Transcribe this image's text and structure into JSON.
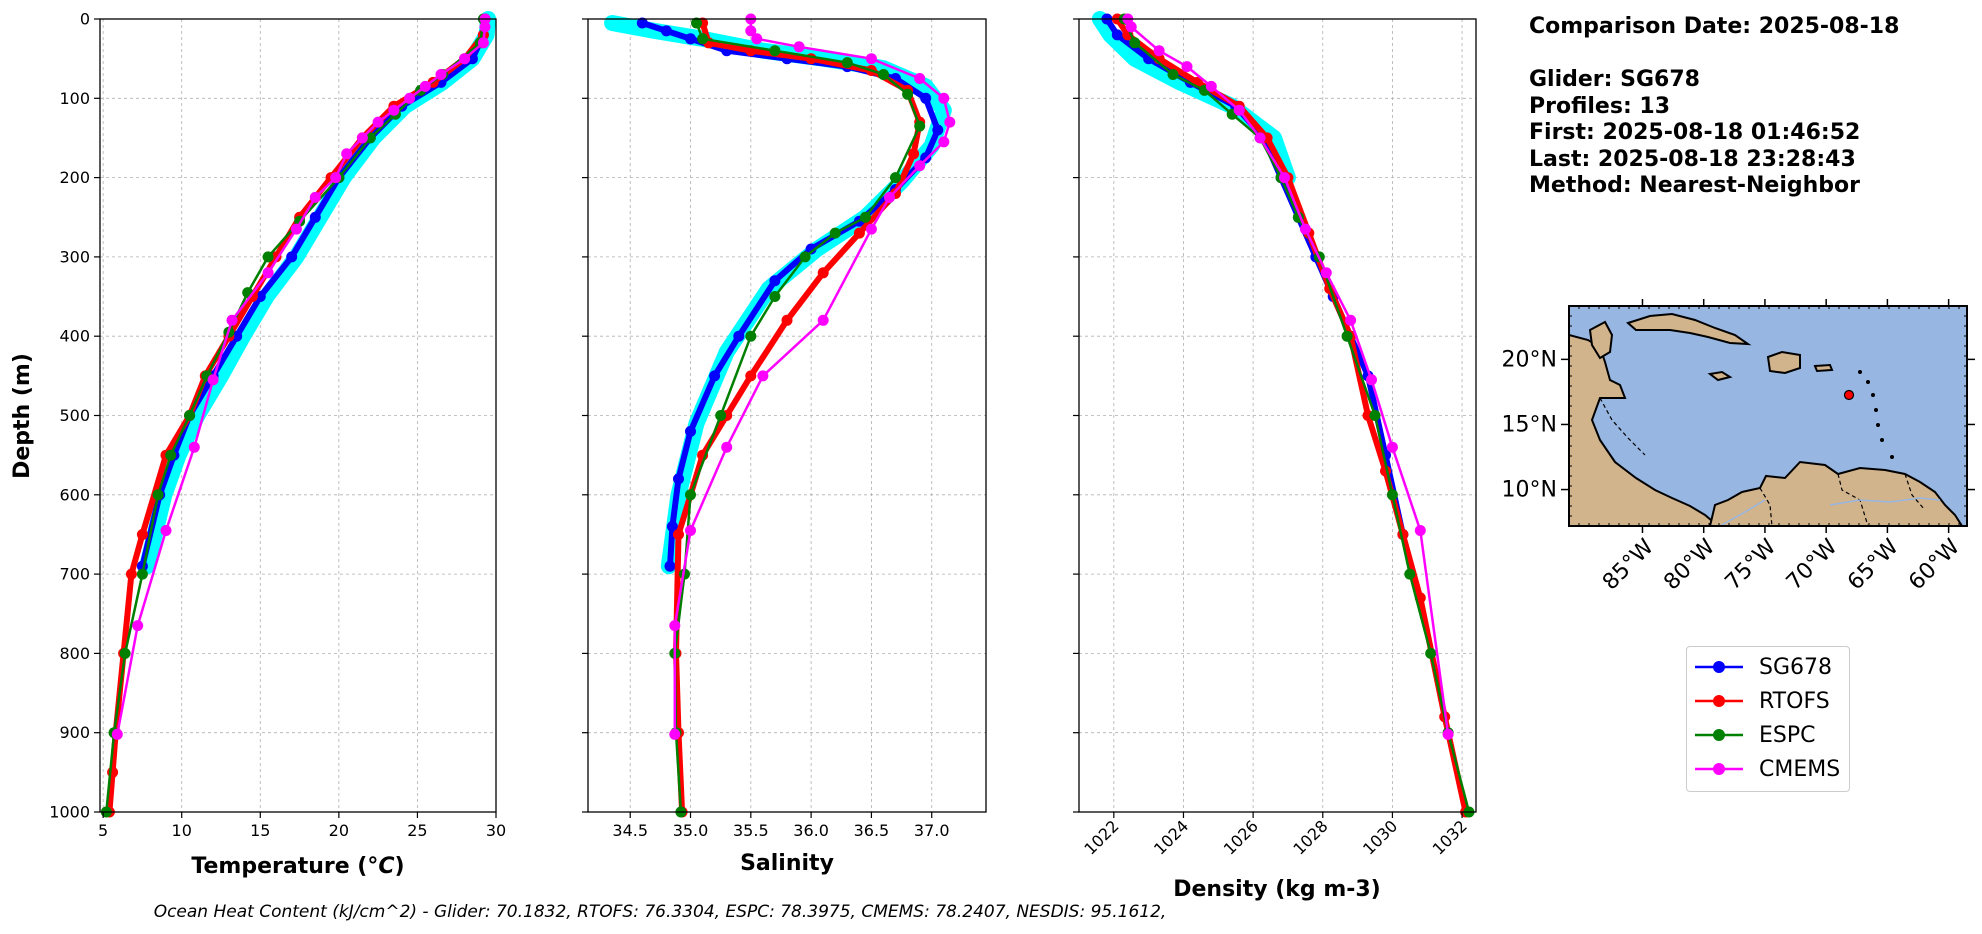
{
  "info": {
    "comparison_date": "Comparison Date: 2025-08-18",
    "glider": "Glider: SG678",
    "profiles": "Profiles: 13",
    "first": "First: 2025-08-18 01:46:52",
    "last": "Last: 2025-08-18 23:28:43",
    "method": "Method: Nearest-Neighbor"
  },
  "footer": "Ocean Heat Content (kJ/cm^2) - Glider: 70.1832,  RTOFS: 76.3304,  ESPC: 78.3975,  CMEMS: 78.2407,  NESDIS: 95.1612,",
  "legend": [
    {
      "name": "SG678",
      "color": "#0000ff"
    },
    {
      "name": "RTOFS",
      "color": "#ff0000"
    },
    {
      "name": "ESPC",
      "color": "#008000"
    },
    {
      "name": "CMEMS",
      "color": "#ff00ff"
    }
  ],
  "colors": {
    "glider_profiles": "#00ffff",
    "ocean": "#97b6e1",
    "land": "#d2b48c",
    "grid": "#b0b0b0"
  },
  "map": {
    "lat_ticks": [
      "20°N",
      "15°N",
      "10°N"
    ],
    "lon_ticks": [
      "85°W",
      "80°W",
      "75°W",
      "70°W",
      "65°W",
      "60°W"
    ],
    "glider_marker": {
      "lon": -62.7,
      "lat": 17.2
    }
  },
  "chart_data": [
    {
      "type": "line",
      "xlabel": "Temperature (°C)",
      "ylabel": "Depth (m)",
      "xlim": [
        4.8,
        30
      ],
      "ylim": [
        1000,
        0
      ],
      "xticks": [
        5,
        10,
        15,
        20,
        25,
        30
      ],
      "yticks": [
        0,
        100,
        200,
        300,
        400,
        500,
        600,
        700,
        800,
        900,
        1000
      ],
      "grid": true,
      "series": [
        {
          "name": "SG678",
          "x": [
            29.3,
            29.2,
            28.5,
            26.5,
            24.0,
            22.0,
            20.0,
            18.5,
            17.0,
            15.0,
            13.5,
            12.0,
            10.5,
            9.5,
            8.6,
            7.5
          ],
          "y": [
            0,
            20,
            50,
            80,
            110,
            150,
            200,
            250,
            300,
            350,
            400,
            450,
            500,
            550,
            600,
            690
          ]
        },
        {
          "name": "RTOFS",
          "x": [
            29.3,
            29.2,
            28.0,
            26.0,
            23.5,
            21.5,
            19.5,
            17.5,
            16.0,
            14.5,
            13.0,
            11.5,
            10.5,
            9.0,
            7.5,
            6.8,
            6.3,
            5.8,
            5.6,
            5.4
          ],
          "y": [
            0,
            20,
            50,
            80,
            110,
            150,
            200,
            250,
            300,
            350,
            400,
            450,
            500,
            550,
            650,
            700,
            800,
            900,
            950,
            1000
          ]
        },
        {
          "name": "ESPC",
          "x": [
            29.2,
            29.0,
            26.6,
            25.2,
            23.6,
            22.0,
            20.0,
            17.5,
            15.5,
            14.2,
            13.0,
            11.6,
            10.5,
            9.3,
            8.5,
            7.5,
            6.4,
            5.7,
            5.2
          ],
          "y": [
            0,
            30,
            70,
            90,
            120,
            150,
            200,
            255,
            300,
            345,
            395,
            450,
            500,
            550,
            600,
            700,
            800,
            900,
            1000
          ]
        },
        {
          "name": "CMEMS",
          "x": [
            29.3,
            29.3,
            29.2,
            28.0,
            26.5,
            25.5,
            24.5,
            23.5,
            22.5,
            21.5,
            20.5,
            19.8,
            18.5,
            17.3,
            15.5,
            13.2,
            12.0,
            10.8,
            9.0,
            7.2,
            5.9
          ],
          "y": [
            0,
            10,
            30,
            50,
            70,
            85,
            100,
            115,
            130,
            150,
            170,
            200,
            225,
            265,
            320,
            380,
            455,
            540,
            645,
            765,
            902
          ]
        },
        {
          "name": "glider profiles",
          "x": [
            29.5,
            29.4,
            28.5,
            26.6,
            24.2,
            22.2,
            20.3,
            18.8,
            17.3,
            15.4,
            13.9,
            12.5,
            11.0,
            9.8,
            8.9,
            7.8
          ],
          "y": [
            0,
            20,
            50,
            80,
            110,
            150,
            200,
            250,
            300,
            350,
            400,
            450,
            500,
            550,
            600,
            690
          ]
        }
      ]
    },
    {
      "type": "line",
      "xlabel": "Salinity",
      "xlim": [
        34.15,
        37.45
      ],
      "ylim": [
        1000,
        0
      ],
      "xticks": [
        "34.5",
        "35.0",
        "35.5",
        "36.0",
        "36.5",
        "37.0"
      ],
      "grid": true,
      "series": [
        {
          "name": "SG678",
          "x": [
            34.6,
            34.8,
            35.0,
            35.3,
            35.8,
            36.3,
            36.7,
            36.95,
            37.05,
            36.95,
            36.7,
            36.4,
            36.0,
            35.7,
            35.4,
            35.2,
            35.0,
            34.9,
            34.85,
            34.83
          ],
          "y": [
            5,
            15,
            25,
            40,
            50,
            60,
            75,
            100,
            140,
            175,
            215,
            255,
            290,
            330,
            400,
            450,
            520,
            580,
            640,
            690
          ]
        },
        {
          "name": "RTOFS",
          "x": [
            35.1,
            35.15,
            35.5,
            36.0,
            36.5,
            36.8,
            36.9,
            36.85,
            36.7,
            36.4,
            36.1,
            35.8,
            35.5,
            35.3,
            35.1,
            34.9,
            34.88,
            34.9,
            34.93
          ],
          "y": [
            5,
            30,
            40,
            50,
            65,
            90,
            130,
            170,
            220,
            270,
            320,
            380,
            450,
            500,
            550,
            650,
            800,
            900,
            1000
          ]
        },
        {
          "name": "ESPC",
          "x": [
            35.05,
            35.1,
            35.7,
            36.3,
            36.6,
            36.8,
            36.9,
            36.7,
            36.45,
            36.2,
            35.95,
            35.7,
            35.5,
            35.25,
            35.0,
            34.95,
            34.87,
            34.88,
            34.92
          ],
          "y": [
            5,
            25,
            40,
            55,
            70,
            95,
            135,
            200,
            250,
            270,
            300,
            350,
            400,
            500,
            600,
            700,
            800,
            900,
            1000
          ]
        },
        {
          "name": "CMEMS",
          "x": [
            35.5,
            35.5,
            35.55,
            35.9,
            36.5,
            36.9,
            37.1,
            37.15,
            37.1,
            36.9,
            36.65,
            36.5,
            36.1,
            35.6,
            35.3,
            35.0,
            34.87,
            34.87
          ],
          "y": [
            0,
            15,
            25,
            35,
            50,
            75,
            100,
            130,
            155,
            185,
            225,
            265,
            380,
            450,
            540,
            645,
            765,
            902
          ]
        },
        {
          "name": "glider profiles",
          "x": [
            34.35,
            34.7,
            35.1,
            35.6,
            36.1,
            36.6,
            36.95,
            37.1,
            37.0,
            36.75,
            36.45,
            36.05,
            35.65,
            35.3,
            35.05,
            34.9,
            34.82
          ],
          "y": [
            5,
            15,
            25,
            40,
            50,
            62,
            85,
            115,
            160,
            205,
            250,
            290,
            340,
            420,
            510,
            600,
            690
          ]
        }
      ]
    },
    {
      "type": "line",
      "xlabel": "Density (kg m-3)",
      "xlim": [
        1021.0,
        1032.4
      ],
      "ylim": [
        1000,
        0
      ],
      "xticks": [
        1022,
        1024,
        1026,
        1028,
        1030,
        1032
      ],
      "grid": true,
      "series": [
        {
          "name": "SG678",
          "x": [
            1021.8,
            1022.1,
            1023.0,
            1024.2,
            1025.5,
            1026.3,
            1026.8,
            1027.3,
            1027.8,
            1028.3,
            1028.8,
            1029.3,
            1029.8,
            1030.3
          ],
          "y": [
            0,
            20,
            50,
            80,
            110,
            150,
            200,
            250,
            300,
            350,
            400,
            450,
            550,
            650
          ]
        },
        {
          "name": "RTOFS",
          "x": [
            1022.1,
            1022.4,
            1023.3,
            1024.4,
            1025.6,
            1026.4,
            1027.0,
            1027.6,
            1028.2,
            1028.8,
            1029.3,
            1029.8,
            1030.3,
            1030.8,
            1031.5,
            1032.1
          ],
          "y": [
            0,
            20,
            50,
            80,
            110,
            150,
            200,
            270,
            340,
            400,
            500,
            570,
            650,
            730,
            880,
            1000
          ]
        },
        {
          "name": "ESPC",
          "x": [
            1022.3,
            1022.6,
            1023.7,
            1024.6,
            1025.4,
            1026.2,
            1026.8,
            1027.3,
            1027.9,
            1028.7,
            1029.5,
            1030.0,
            1030.5,
            1031.1,
            1031.6,
            1032.2
          ],
          "y": [
            0,
            30,
            70,
            90,
            120,
            150,
            200,
            250,
            300,
            400,
            500,
            600,
            700,
            800,
            900,
            1000
          ]
        },
        {
          "name": "CMEMS",
          "x": [
            1022.4,
            1022.5,
            1023.3,
            1024.1,
            1024.8,
            1025.6,
            1026.2,
            1026.9,
            1027.5,
            1028.1,
            1028.8,
            1029.4,
            1030.0,
            1030.8,
            1031.6
          ],
          "y": [
            0,
            10,
            40,
            60,
            85,
            115,
            150,
            200,
            265,
            320,
            380,
            455,
            540,
            645,
            902
          ]
        },
        {
          "name": "glider profiles",
          "x": [
            1021.6,
            1021.9,
            1022.6,
            1023.9,
            1025.4,
            1026.6,
            1027.0
          ],
          "y": [
            0,
            20,
            50,
            80,
            110,
            150,
            200
          ]
        }
      ]
    }
  ]
}
